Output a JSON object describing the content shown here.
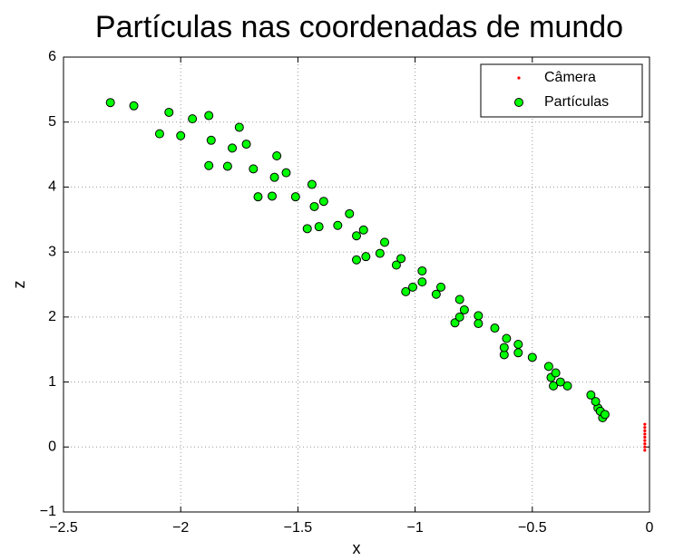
{
  "chart_data": {
    "type": "scatter",
    "title": "Partículas nas coordenadas de mundo",
    "xlabel": "x",
    "ylabel": "z",
    "xlim": [
      -2.5,
      0
    ],
    "ylim": [
      -1,
      6
    ],
    "xticks": [
      {
        "value": -2.5,
        "label": "−2.5"
      },
      {
        "value": -2,
        "label": "−2"
      },
      {
        "value": -1.5,
        "label": "−1.5"
      },
      {
        "value": -1,
        "label": "−1"
      },
      {
        "value": -0.5,
        "label": "−0.5"
      },
      0
    ],
    "yticks": [
      {
        "value": -1,
        "label": "−1"
      },
      0,
      1,
      2,
      3,
      4,
      5,
      6
    ],
    "grid": true,
    "legend": "upper right",
    "series": [
      {
        "name": "Câmera",
        "color": "#ff0000",
        "marker": "dot",
        "x": [
          -0.02,
          -0.02,
          -0.02,
          -0.02,
          -0.02,
          -0.02,
          -0.02,
          -0.02,
          -0.02
        ],
        "values": [
          -0.05,
          0,
          0.05,
          0.1,
          0.15,
          0.2,
          0.25,
          0.3,
          0.35
        ]
      },
      {
        "name": "Partículas",
        "color": "#00ff00",
        "marker": "circle",
        "x": [
          -2.3,
          -2.09,
          -1.88,
          -1.67,
          -1.46,
          -1.25,
          -1.04,
          -0.83,
          -0.62,
          -0.41,
          -0.2,
          -2.2,
          -2.0,
          -1.8,
          -1.61,
          -1.41,
          -1.21,
          -1.01,
          -0.81,
          -0.62,
          -0.42,
          -0.22,
          -2.05,
          -1.87,
          -1.69,
          -1.51,
          -1.33,
          -1.15,
          -0.97,
          -0.79,
          -0.61,
          -0.43,
          -0.25,
          -1.95,
          -1.78,
          -1.6,
          -1.43,
          -1.25,
          -1.08,
          -0.91,
          -0.73,
          -0.56,
          -0.38,
          -0.21,
          -1.88,
          -1.72,
          -1.55,
          -1.39,
          -1.22,
          -1.06,
          -0.89,
          -0.73,
          -0.56,
          -0.4,
          -0.23,
          -1.75,
          -1.59,
          -1.44,
          -1.28,
          -1.13,
          -0.97,
          -0.81,
          -0.66,
          -0.5,
          -0.35,
          -0.19
        ],
        "values": [
          5.3,
          4.82,
          4.33,
          3.85,
          3.36,
          2.88,
          2.39,
          1.91,
          1.42,
          0.94,
          0.45,
          5.25,
          4.79,
          4.32,
          3.86,
          3.39,
          2.93,
          2.46,
          2.0,
          1.53,
          1.07,
          0.6,
          5.15,
          4.72,
          4.28,
          3.85,
          3.41,
          2.98,
          2.54,
          2.11,
          1.67,
          1.24,
          0.8,
          5.05,
          4.6,
          4.15,
          3.7,
          3.25,
          2.8,
          2.35,
          1.9,
          1.45,
          1.0,
          0.55,
          5.1,
          4.66,
          4.22,
          3.78,
          3.34,
          2.9,
          2.46,
          2.02,
          1.58,
          1.14,
          0.7,
          4.92,
          4.48,
          4.04,
          3.59,
          3.15,
          2.71,
          2.27,
          1.83,
          1.38,
          0.94,
          0.5
        ]
      }
    ]
  }
}
